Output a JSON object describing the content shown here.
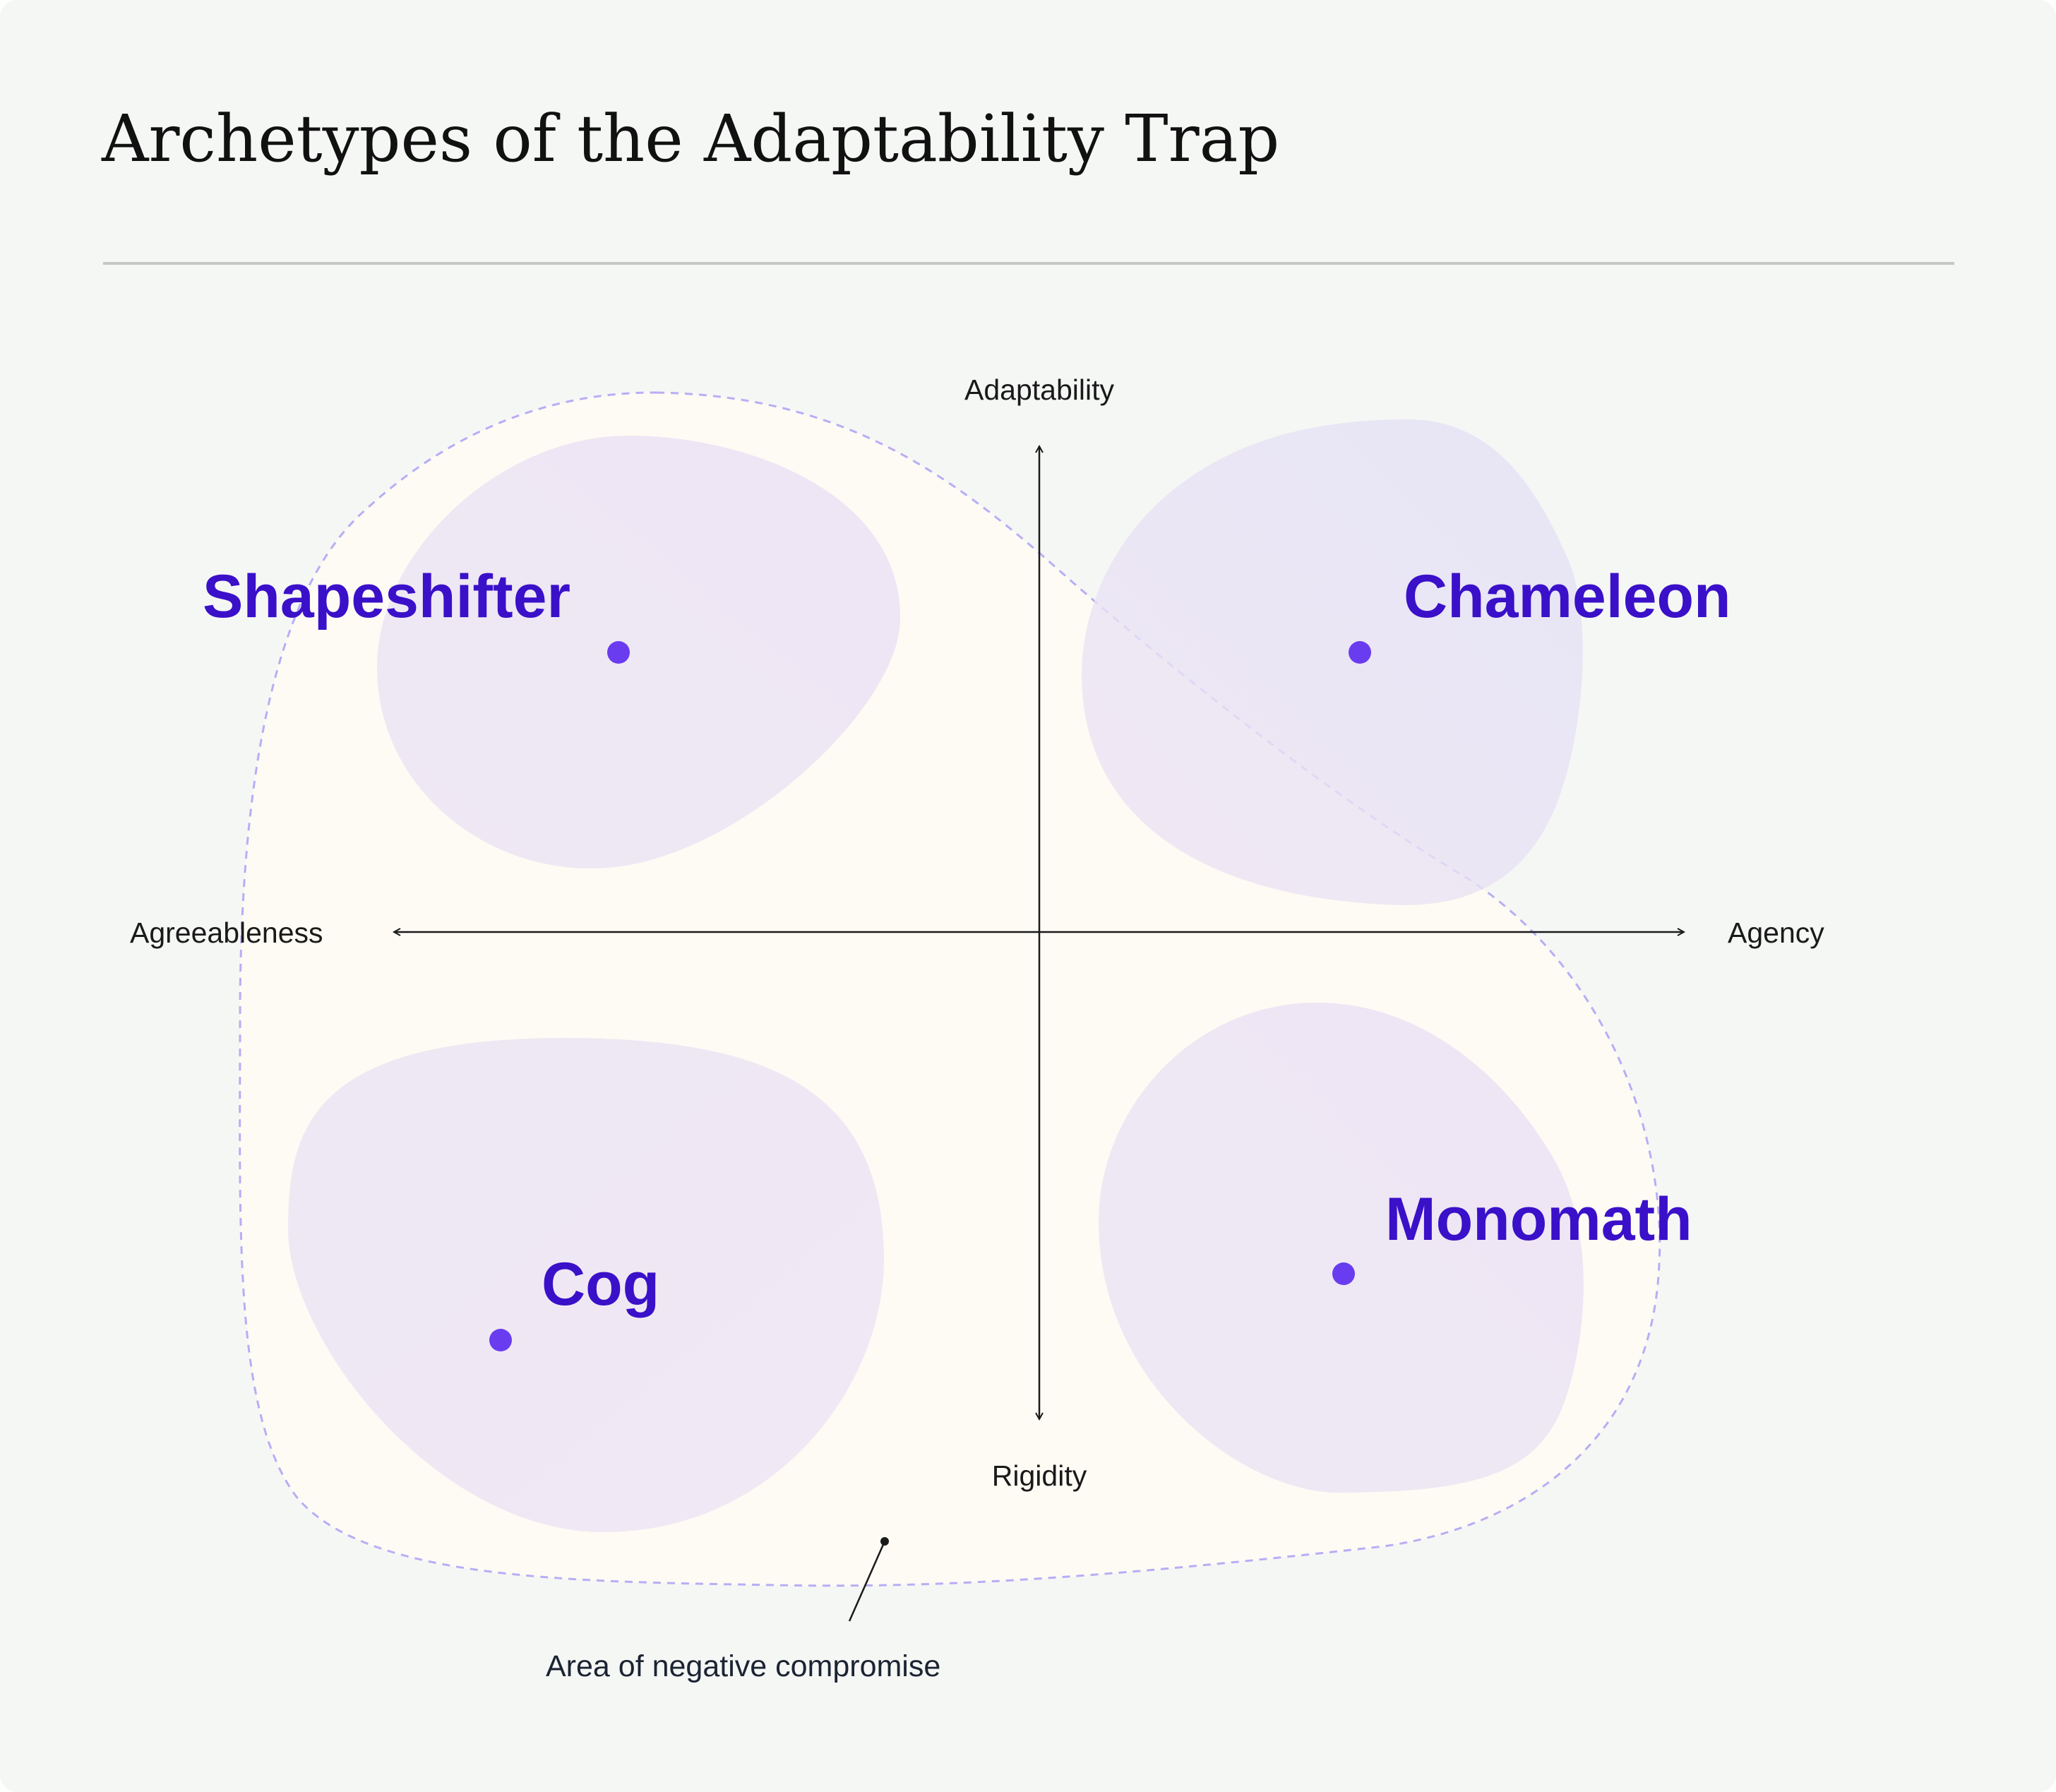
{
  "title": "Archetypes of the Adaptability Trap",
  "axes": {
    "top": "Adaptability",
    "bottom": "Rigidity",
    "left": "Agreeableness",
    "right": "Agency"
  },
  "archetypes": [
    {
      "id": "shapeshifter",
      "label": "Shapeshifter",
      "quadrant": "top-left"
    },
    {
      "id": "chameleon",
      "label": "Chameleon",
      "quadrant": "top-right"
    },
    {
      "id": "cog",
      "label": "Cog",
      "quadrant": "bottom-left"
    },
    {
      "id": "monomath",
      "label": "Monomath",
      "quadrant": "bottom-right"
    }
  ],
  "annotation": {
    "label": "Area of negative compromise"
  },
  "colors": {
    "background": "#f5f7f5",
    "divider": "#c4c8c6",
    "compromise_area": "#fefbf4",
    "compromise_outline": "#b9adf5",
    "blob_fill": "#e4dcf4",
    "point": "#6a3cf0",
    "label": "#3a10c9",
    "axis": "#1a1a1a"
  }
}
